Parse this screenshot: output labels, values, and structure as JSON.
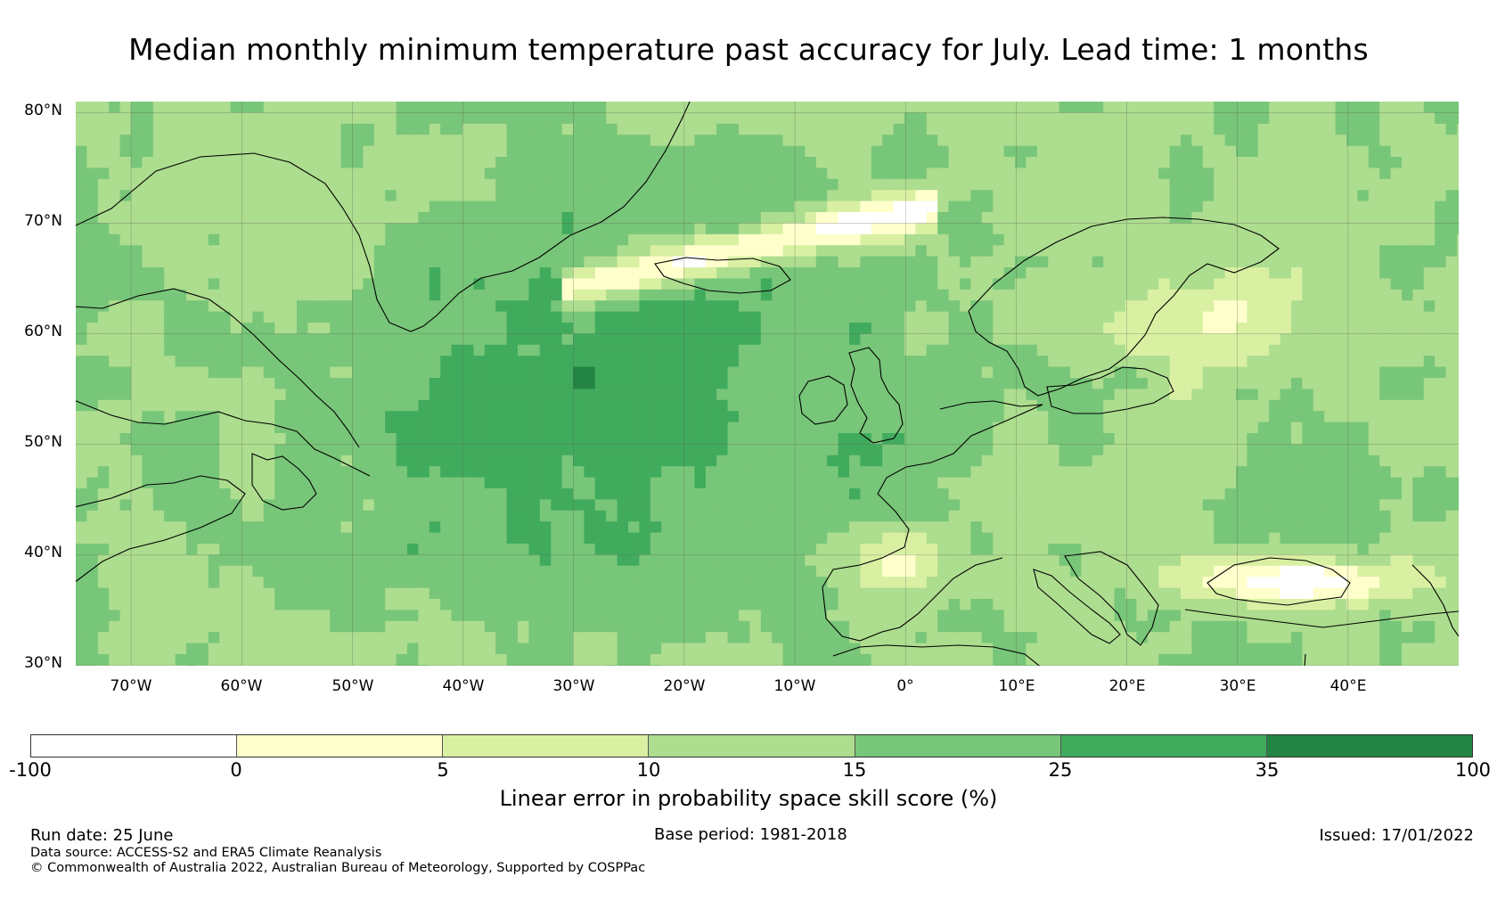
{
  "title": "Median monthly minimum temperature past accuracy for July. Lead time: 1 months",
  "map": {
    "lat_labels": [
      "80°N",
      "70°N",
      "60°N",
      "50°N",
      "40°N",
      "30°N"
    ],
    "lon_labels": [
      "70°W",
      "60°W",
      "50°W",
      "40°W",
      "30°W",
      "20°W",
      "10°W",
      "0°",
      "10°E",
      "20°E",
      "30°E",
      "40°E"
    ],
    "extent": {
      "lon_min": -75,
      "lon_max": 50,
      "lat_min": 30,
      "lat_max": 81
    }
  },
  "colorbar": {
    "label": "Linear error in probability space skill score (%)",
    "ticks": [
      "-100",
      "0",
      "5",
      "10",
      "15",
      "25",
      "35",
      "100"
    ],
    "colors": [
      "#ffffff",
      "#ffffcc",
      "#d9f0a3",
      "#addd8e",
      "#78c679",
      "#41ab5d",
      "#238443"
    ]
  },
  "footer": {
    "run_date": "Run date: 25 June",
    "base_period": "Base period: 1981-2018",
    "issued": "Issued: 17/01/2022",
    "data_source": "Data source: ACCESS-S2 and ERA5 Climate Reanalysis",
    "copyright": "© Commonwealth of Australia 2022, Australian Bureau of Meteorology, Supported by COSPPac"
  },
  "colors": {
    "coastline": "#000000",
    "gridline": "#555555"
  }
}
